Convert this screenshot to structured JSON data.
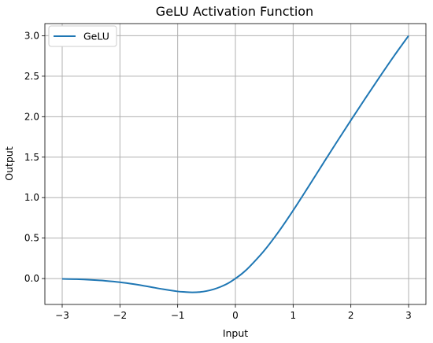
{
  "chart_data": {
    "type": "line",
    "title": "GeLU Activation Function",
    "xlabel": "Input",
    "ylabel": "Output",
    "xlim": [
      -3.3,
      3.3
    ],
    "ylim": [
      -0.32,
      3.15
    ],
    "grid": true,
    "legend_position": "top-left",
    "x_ticks": [
      -3,
      -2,
      -1,
      0,
      1,
      2,
      3
    ],
    "x_tick_labels": [
      "−3",
      "−2",
      "−1",
      "0",
      "1",
      "2",
      "3"
    ],
    "y_ticks": [
      0.0,
      0.5,
      1.0,
      1.5,
      2.0,
      2.5,
      3.0
    ],
    "y_tick_labels": [
      "0.0",
      "0.5",
      "1.0",
      "1.5",
      "2.0",
      "2.5",
      "3.0"
    ],
    "series": [
      {
        "name": "GeLU",
        "color": "#1f77b4",
        "x": [
          -3.0,
          -2.75,
          -2.5,
          -2.25,
          -2.0,
          -1.75,
          -1.5,
          -1.25,
          -1.0,
          -0.875,
          -0.75,
          -0.625,
          -0.5,
          -0.375,
          -0.25,
          -0.125,
          0.0,
          0.125,
          0.25,
          0.5,
          0.75,
          1.0,
          1.25,
          1.5,
          1.75,
          2.0,
          2.25,
          2.5,
          2.75,
          3.0
        ],
        "y": [
          -0.004,
          -0.008,
          -0.016,
          -0.028,
          -0.045,
          -0.07,
          -0.1,
          -0.132,
          -0.159,
          -0.166,
          -0.17,
          -0.167,
          -0.154,
          -0.132,
          -0.1,
          -0.058,
          0.0,
          0.067,
          0.15,
          0.346,
          0.58,
          0.841,
          1.118,
          1.4,
          1.68,
          1.955,
          2.226,
          2.492,
          2.752,
          3.0
        ]
      }
    ]
  }
}
